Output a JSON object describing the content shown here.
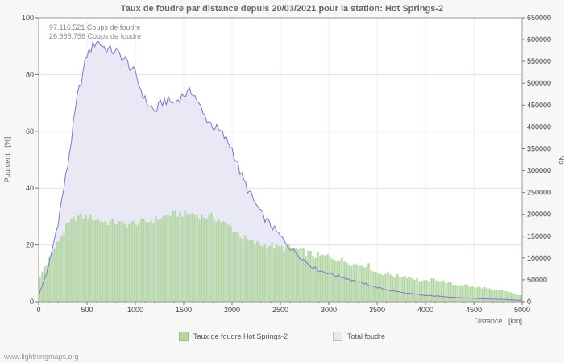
{
  "footer": {
    "watermark": "www.lightningmaps.org"
  },
  "colors": {
    "page_bg": "#f7f7f5",
    "plot_bg": "#ffffff",
    "grid": "#e0e0e0",
    "grid_vertical": "#efefef",
    "axis": "#9a9a9a",
    "taux_fill": "#b4d6a4",
    "taux_swatch_edge": "#94c17e",
    "total_fill": "#e9e9f6",
    "total_line": "#7979c8",
    "total_swatch_edge": "#b9b9d6"
  },
  "chart_data": {
    "type": "area",
    "title": "Taux de foudre par distance depuis 20/03/2021 pour la station: Hot Springs-2",
    "xlabel": "Distance   [km]",
    "ylabel_left": "Pourcent   [%]",
    "ylabel_right": "Nb",
    "xlim": [
      0,
      5000
    ],
    "ylim_left": [
      0,
      100
    ],
    "ylim_right": [
      0,
      650000
    ],
    "x_step": 100,
    "x_ticks": [
      0,
      500,
      1000,
      1500,
      2000,
      2500,
      3000,
      3500,
      4000,
      4500,
      5000
    ],
    "y_left_ticks": [
      0,
      20,
      40,
      60,
      80,
      100
    ],
    "y_right_ticks": [
      0,
      50000,
      100000,
      150000,
      200000,
      250000,
      300000,
      350000,
      400000,
      450000,
      500000,
      550000,
      600000,
      650000
    ],
    "grid": "horizontal",
    "legend_position": "bottom",
    "annotations": [
      "97.116.521 Coups de foudre",
      "26.688.756 Coups de foudre"
    ],
    "series": [
      {
        "name": "Taux de foudre Hot Springs-2",
        "style": "bars",
        "axis": "left",
        "values": [
          8,
          15,
          21,
          27,
          30,
          30,
          29,
          28,
          28,
          27,
          28,
          28,
          29,
          30,
          31,
          31,
          31,
          30,
          30,
          28,
          26,
          23,
          21,
          20,
          20,
          19,
          19,
          18,
          17,
          16,
          16,
          15,
          14,
          13,
          13,
          10,
          10,
          9,
          9,
          8,
          7,
          8,
          7,
          6,
          6,
          5,
          5,
          4,
          4,
          3,
          2
        ]
      },
      {
        "name": "Total foudre",
        "style": "area-line",
        "axis": "left",
        "values": [
          2,
          12,
          28,
          48,
          72,
          87,
          92,
          89,
          88,
          85,
          80,
          71,
          67,
          71,
          70,
          73,
          74,
          66,
          62,
          59,
          54,
          44,
          37,
          31,
          27,
          23,
          19,
          16,
          13,
          11,
          10,
          9,
          8,
          7,
          6,
          5,
          4.2,
          3.6,
          3,
          2.6,
          2.2,
          2,
          1.8,
          1.5,
          1.3,
          1.2,
          1,
          0.9,
          0.8,
          0.6,
          0.5
        ]
      }
    ]
  }
}
